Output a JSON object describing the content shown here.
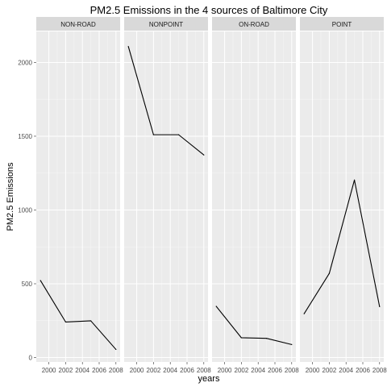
{
  "chart_data": {
    "type": "line",
    "title": "PM2.5 Emissions in the 4 sources of Baltimore City",
    "xlabel": "years",
    "ylabel": "PM2.5 Emissions",
    "x": [
      1999,
      2002,
      2005,
      2008
    ],
    "xlim": [
      1998.5,
      2008.5
    ],
    "ylim": [
      -30,
      2210
    ],
    "x_ticks": [
      2000,
      2002,
      2004,
      2006,
      2008
    ],
    "x_tick_labels": [
      "2000",
      "2002",
      "2004",
      "2006",
      "2008"
    ],
    "y_ticks": [
      0,
      500,
      1000,
      1500,
      2000
    ],
    "y_tick_labels": [
      "0",
      "500",
      "1000",
      "1500",
      "2000"
    ],
    "grid": true,
    "legend": "none",
    "colors": {
      "panel_bg": "#ebebeb",
      "strip_bg": "#d9d9d9",
      "grid_major": "#ffffff",
      "line": "#000000"
    },
    "panels": [
      {
        "name": "NON-ROAD",
        "values": [
          522,
          241,
          249,
          55
        ]
      },
      {
        "name": "NONPOINT",
        "values": [
          2108,
          1510,
          1510,
          1373
        ]
      },
      {
        "name": "ON-ROAD",
        "values": [
          347,
          134,
          130,
          88
        ]
      },
      {
        "name": "POINT",
        "values": [
          297,
          570,
          1203,
          345
        ]
      }
    ]
  }
}
